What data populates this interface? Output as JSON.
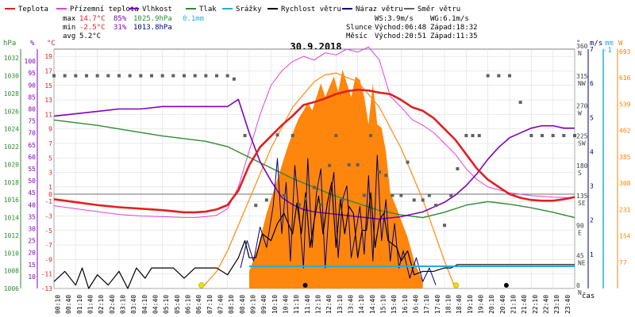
{
  "legend": [
    {
      "label": "Teplota",
      "color": "#e02020"
    },
    {
      "label": "Přízemní teplota",
      "color": "#e040e0"
    },
    {
      "label": "Vlhkost",
      "color": "#8000c0"
    },
    {
      "label": "Tlak",
      "color": "#2f8a2f"
    },
    {
      "label": "Srážky",
      "color": "#20b0d0"
    },
    {
      "label": "Rychlost větru",
      "color": "#000000"
    },
    {
      "label": "Náraz větru",
      "color": "#000080"
    },
    {
      "label": "Směr větru",
      "color": "#606060"
    }
  ],
  "stats": {
    "max_label": "max",
    "min_label": "min",
    "avg_label": "avg",
    "max_temp": "14.7°C",
    "max_hum": "85%",
    "max_press": "1025.9hPa",
    "max_rain": "0.1mm",
    "min_temp": "-2.5°C",
    "min_hum": "31%",
    "min_press": "1013.8hPa",
    "avg_temp": "5.2°C",
    "ws": "WS:3.9m/s",
    "wg": "WG:6.1m/s",
    "sun_label": "Slunce",
    "sunrise": "Východ:06:48",
    "sunset": "Západ:18:32",
    "moon_label": "Měsíc",
    "moonrise": "Východ:20:51",
    "moonset": "Západ:11:35"
  },
  "date_title": "30.9.2018",
  "axes": {
    "hpa_unit": "hPa",
    "pct_unit": "%",
    "deg_unit": "°C",
    "dir_unit": "°",
    "ms_unit": "m/s",
    "mm_unit": "mm",
    "w_unit": "W",
    "ms_max": "-1",
    "x_unit": "čas",
    "hpa_ticks": [
      1032,
      1030,
      1028,
      1026,
      1024,
      1022,
      1020,
      1018,
      1016,
      1014,
      1012,
      1010,
      1008,
      1006
    ],
    "pct_ticks": [
      100,
      95,
      90,
      85,
      80,
      75,
      70,
      65,
      60,
      55,
      50,
      45,
      40,
      35,
      30,
      25,
      20,
      15,
      10
    ],
    "temp_ticks": [
      19,
      17,
      15,
      13,
      11,
      9,
      7,
      5,
      3,
      1,
      -1,
      -3,
      -5,
      -7,
      -9,
      -11,
      -13
    ],
    "temp_zero_label": "0",
    "dir_ticks": [
      {
        "deg": 360,
        "label": "N"
      },
      {
        "deg": 315,
        "label": "NW"
      },
      {
        "deg": 270,
        "label": "W"
      },
      {
        "deg": 225,
        "label": "SW"
      },
      {
        "deg": 180,
        "label": "S"
      },
      {
        "deg": 135,
        "label": "SE"
      },
      {
        "deg": 90,
        "label": "E"
      },
      {
        "deg": 45,
        "label": "NE"
      },
      {
        "deg": 0,
        "label": "N"
      }
    ],
    "ms_ticks": [
      7,
      6,
      5,
      4,
      3,
      2,
      1,
      0
    ],
    "w_ticks": [
      693,
      616,
      539,
      462,
      385,
      308,
      231,
      154,
      77,
      0
    ],
    "time_labels": [
      "00:10",
      "00:40",
      "01:10",
      "01:40",
      "02:10",
      "02:40",
      "03:10",
      "03:40",
      "04:10",
      "04:40",
      "05:10",
      "05:40",
      "06:10",
      "06:40",
      "07:10",
      "07:40",
      "08:10",
      "08:40",
      "09:10",
      "09:40",
      "10:10",
      "10:40",
      "11:10",
      "11:40",
      "12:10",
      "12:40",
      "13:10",
      "13:40",
      "14:10",
      "14:40",
      "15:10",
      "15:40",
      "16:10",
      "16:40",
      "17:10",
      "17:40",
      "18:10",
      "18:40",
      "19:10",
      "19:40",
      "20:10",
      "20:40",
      "21:10",
      "21:40",
      "22:10",
      "22:40",
      "23:10",
      "23:40"
    ]
  },
  "chart_data": {
    "type": "line",
    "title": "30.9.2018",
    "xlabel": "čas",
    "x_range_hours": [
      0,
      24
    ],
    "series": [
      {
        "name": "Teplota",
        "unit": "°C",
        "color": "#e02020",
        "x": [
          0,
          1,
          2,
          3,
          4,
          5,
          6,
          6.5,
          7,
          7.5,
          8,
          8.5,
          9,
          9.5,
          10,
          10.5,
          11,
          11.5,
          12,
          12.5,
          13,
          13.5,
          14,
          14.5,
          15,
          15.5,
          16,
          16.5,
          17,
          17.5,
          18,
          18.5,
          19,
          19.5,
          20,
          20.5,
          21,
          21.5,
          22,
          22.5,
          23,
          23.5,
          24
        ],
        "y": [
          -0.7,
          -1.1,
          -1.5,
          -1.8,
          -2.0,
          -2.2,
          -2.5,
          -2.5,
          -2.4,
          -2.1,
          -1.5,
          0.5,
          4.0,
          6.5,
          8.0,
          9.5,
          10.8,
          12.3,
          12.7,
          13.2,
          13.8,
          14.2,
          14.4,
          14.3,
          14.0,
          13.8,
          13.0,
          12.0,
          11.5,
          10.5,
          9.0,
          7.5,
          5.5,
          3.5,
          2.0,
          1.0,
          0.0,
          -0.5,
          -0.8,
          -0.9,
          -0.9,
          -0.7,
          -0.4
        ]
      },
      {
        "name": "Přízemní teplota",
        "unit": "°C",
        "color": "#e040e0",
        "x": [
          0,
          1,
          2,
          3,
          4,
          5,
          6,
          6.5,
          7,
          7.5,
          8,
          8.5,
          9,
          9.5,
          10,
          10.5,
          11,
          11.5,
          12,
          12.5,
          13,
          13.5,
          14,
          14.5,
          15,
          15.5,
          16,
          16.5,
          17,
          17.5,
          18,
          18.5,
          19,
          19.5,
          20,
          21,
          22,
          23,
          24
        ],
        "y": [
          -1.6,
          -2.0,
          -2.4,
          -2.8,
          -3.0,
          -3.1,
          -3.2,
          -3.2,
          -3.1,
          -2.9,
          -2.0,
          1.0,
          6.0,
          11.0,
          15.0,
          17.0,
          18.3,
          19.0,
          18.5,
          19.5,
          19.2,
          20.0,
          19.6,
          20.3,
          18.5,
          13.5,
          12.0,
          10.3,
          9.5,
          8.5,
          7.0,
          5.5,
          3.5,
          2.0,
          1.0,
          0.2,
          -0.2,
          -0.4,
          -0.5
        ]
      },
      {
        "name": "Vlhkost",
        "unit": "%",
        "color": "#8000c0",
        "x": [
          0,
          1,
          2,
          3,
          4,
          5,
          6,
          7,
          7.5,
          8,
          8.5,
          9,
          9.5,
          10,
          10.5,
          11,
          11.5,
          12,
          13,
          14,
          15,
          16,
          16.5,
          17,
          17.5,
          18,
          18.5,
          19,
          19.5,
          20,
          20.5,
          21,
          21.5,
          22,
          22.5,
          23,
          23.5,
          24
        ],
        "y": [
          77,
          78,
          79,
          80,
          80,
          81,
          81,
          81,
          81,
          81,
          84,
          70,
          58,
          50,
          43,
          40,
          38,
          37,
          36,
          35,
          34,
          35,
          36,
          37,
          39,
          41,
          44,
          48,
          53,
          59,
          64,
          68,
          70,
          72,
          73,
          73,
          72,
          72
        ]
      },
      {
        "name": "Tlak",
        "unit": "hPa",
        "color": "#2f8a2f",
        "x": [
          0,
          1,
          2,
          3,
          4,
          5,
          6,
          7,
          8,
          9,
          10,
          11,
          12,
          13,
          14,
          15,
          16,
          17,
          18,
          19,
          20,
          21,
          22,
          23,
          24
        ],
        "y": [
          1025.0,
          1024.7,
          1024.4,
          1024.0,
          1023.6,
          1023.2,
          1022.9,
          1022.6,
          1022.0,
          1020.8,
          1019.6,
          1018.4,
          1017.4,
          1016.4,
          1015.6,
          1014.8,
          1014.3,
          1014.0,
          1014.6,
          1015.4,
          1015.8,
          1015.5,
          1015.1,
          1014.6,
          1014.0
        ]
      },
      {
        "name": "Rychlost větru",
        "unit": "m/s",
        "color": "#000000",
        "x": [
          0,
          0.5,
          1,
          1.3,
          1.6,
          2,
          2.5,
          3,
          3.4,
          3.8,
          4.2,
          4.5,
          5,
          5.5,
          6,
          6.5,
          7,
          7.5,
          8,
          8.5,
          8.8,
          9,
          9.3,
          9.6,
          10,
          10.3,
          10.6,
          11,
          11.2,
          11.4,
          11.6,
          11.8,
          12,
          12.2,
          12.4,
          12.6,
          12.8,
          13,
          13.2,
          13.4,
          13.6,
          13.8,
          14,
          14.2,
          14.4,
          14.6,
          14.8,
          15,
          15.2,
          15.4,
          15.6,
          15.8,
          16,
          16.3,
          16.6,
          17,
          17.5,
          18,
          18.3,
          18.6,
          19,
          20,
          21,
          22,
          23,
          24
        ],
        "y": [
          0.2,
          0.5,
          0.1,
          0.6,
          0,
          0.4,
          0.1,
          0.5,
          0,
          0.6,
          0.3,
          0.6,
          0.6,
          0.6,
          0.3,
          0.6,
          0.6,
          0.6,
          0.4,
          0.9,
          1.4,
          0.9,
          0.9,
          1.6,
          1.4,
          1.9,
          2.2,
          1.6,
          2.5,
          1.6,
          2.8,
          1.2,
          2.0,
          2.7,
          1.6,
          2.5,
          3.1,
          1.2,
          2.6,
          1.6,
          2.4,
          2.2,
          0.9,
          1.7,
          1.7,
          2.8,
          1.2,
          2.0,
          2.2,
          1.4,
          1.3,
          1.2,
          0.8,
          1.1,
          0.4,
          0.5,
          0.5,
          0.6,
          0.6,
          0.7,
          0.7,
          0.7,
          0.7,
          0.7,
          0.7,
          0.7
        ]
      },
      {
        "name": "Náraz větru",
        "unit": "m/s",
        "color": "#000080",
        "x": [
          8.6,
          8.9,
          9.2,
          9.5,
          9.8,
          10.1,
          10.3,
          10.5,
          10.7,
          10.9,
          11.1,
          11.3,
          11.5,
          11.7,
          11.9,
          12.1,
          12.3,
          12.5,
          12.7,
          12.9,
          13.1,
          13.3,
          13.5,
          13.7,
          13.9,
          14.1,
          14.3,
          14.5,
          14.7,
          14.9,
          15.1,
          15.3,
          15.5,
          15.7,
          15.9,
          16.1,
          16.4,
          16.7,
          17.0,
          17.3,
          17.6
        ],
        "y": [
          0.6,
          1.4,
          0.8,
          1.8,
          1.2,
          2.4,
          3.8,
          1.6,
          3.1,
          0.8,
          3.6,
          2.2,
          0.6,
          3.8,
          1.2,
          2.8,
          3.5,
          0.6,
          2.5,
          3.4,
          0.9,
          2.6,
          3.0,
          0.9,
          1.6,
          2.4,
          1.0,
          3.3,
          0.8,
          3.9,
          1.4,
          2.6,
          0.8,
          1.9,
          0.6,
          1.1,
          0.3,
          0.9,
          0.2,
          0.6,
          0.1
        ]
      },
      {
        "name": "Směr větru",
        "unit": "°",
        "color": "#606060",
        "points": [
          [
            0,
            320
          ],
          [
            0.5,
            320
          ],
          [
            1,
            320
          ],
          [
            1.5,
            320
          ],
          [
            2,
            320
          ],
          [
            2.5,
            320
          ],
          [
            3,
            320
          ],
          [
            3.5,
            320
          ],
          [
            4,
            320
          ],
          [
            4.5,
            320
          ],
          [
            5,
            320
          ],
          [
            5.5,
            320
          ],
          [
            6,
            320
          ],
          [
            6.5,
            320
          ],
          [
            7,
            320
          ],
          [
            7.5,
            320
          ],
          [
            8,
            320
          ],
          [
            8.3,
            315
          ],
          [
            8.8,
            230
          ],
          [
            9.3,
            125
          ],
          [
            9.8,
            133
          ],
          [
            10.3,
            231
          ],
          [
            10.6,
            140
          ],
          [
            11,
            230
          ],
          [
            11.3,
            126
          ],
          [
            11.6,
            135
          ],
          [
            12,
            152
          ],
          [
            12.3,
            126
          ],
          [
            12.7,
            185
          ],
          [
            13,
            230
          ],
          [
            13.3,
            133
          ],
          [
            13.6,
            186
          ],
          [
            14,
            186
          ],
          [
            14.3,
            140
          ],
          [
            14.6,
            230
          ],
          [
            15,
            175
          ],
          [
            15.3,
            170
          ],
          [
            15.6,
            140
          ],
          [
            16,
            140
          ],
          [
            16.3,
            190
          ],
          [
            16.6,
            133
          ],
          [
            17,
            133
          ],
          [
            17.3,
            140
          ],
          [
            17.6,
            125
          ],
          [
            18,
            95
          ],
          [
            18.3,
            140
          ],
          [
            18.6,
            180
          ],
          [
            19,
            230
          ],
          [
            19.3,
            230
          ],
          [
            19.6,
            230
          ],
          [
            20,
            320
          ],
          [
            20.5,
            320
          ],
          [
            21,
            320
          ],
          [
            21.5,
            280
          ],
          [
            22,
            230
          ],
          [
            22.5,
            230
          ],
          [
            23,
            230
          ],
          [
            23.5,
            230
          ],
          [
            24,
            230
          ]
        ]
      },
      {
        "name": "Srážky",
        "unit": "mm",
        "color": "#20b0d0",
        "x": [
          9.0,
          24.0
        ],
        "y": [
          0.1,
          0.1
        ]
      },
      {
        "name": "Sluneční záření",
        "unit": "W",
        "color": "#ff8000",
        "x": [
          9.0,
          9.4,
          9.8,
          10.2,
          10.5,
          10.8,
          11.1,
          11.3,
          11.5,
          11.7,
          11.9,
          12.1,
          12.3,
          12.5,
          12.7,
          12.9,
          13.1,
          13.3,
          13.5,
          13.7,
          13.9,
          14.1,
          14.3,
          14.5,
          14.7,
          14.9,
          15.1,
          15.3,
          15.5,
          15.7,
          16.0,
          16.3,
          16.6,
          17.0
        ],
        "y": [
          50,
          120,
          220,
          300,
          360,
          420,
          470,
          500,
          520,
          545,
          520,
          560,
          600,
          560,
          590,
          620,
          575,
          640,
          600,
          560,
          620,
          610,
          560,
          480,
          600,
          480,
          470,
          400,
          280,
          250,
          200,
          150,
          80,
          20
        ]
      },
      {
        "name": "Teoretické záření",
        "unit": "W",
        "color": "#ff8000",
        "x": [
          6.8,
          7.5,
          8,
          9,
          10,
          11,
          12,
          12.5,
          13,
          14,
          15,
          16,
          17,
          18,
          18.5
        ],
        "y": [
          0,
          50,
          110,
          260,
          410,
          530,
          605,
          625,
          630,
          605,
          530,
          410,
          260,
          80,
          0
        ]
      }
    ],
    "ylim_temp": [
      -13,
      20
    ],
    "ylim_humidity": [
      5,
      105
    ],
    "ylim_pressure": [
      1006,
      1033
    ],
    "ylim_direction": [
      0,
      360
    ],
    "ylim_wind": [
      0,
      7
    ],
    "ylim_radiation": [
      0,
      700
    ]
  }
}
